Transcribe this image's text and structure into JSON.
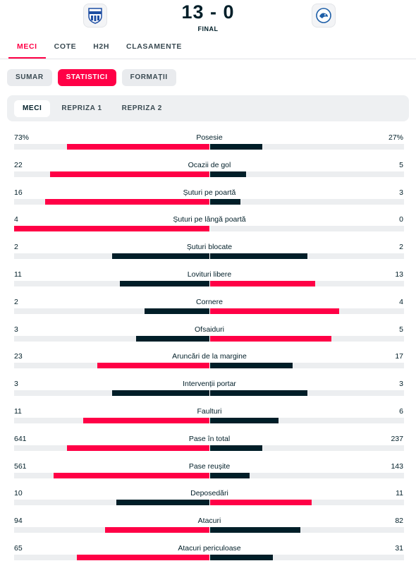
{
  "match": {
    "score": "13 - 0",
    "status": "FINAL",
    "home_icon": "team-crest-icon",
    "away_icon": "team-crest-icon"
  },
  "tabs": [
    "MECI",
    "COTE",
    "H2H",
    "CLASAMENTE"
  ],
  "active_tab": 0,
  "subtabs": [
    "SUMAR",
    "STATISTICI",
    "FORMAȚII"
  ],
  "active_subtab": 1,
  "periods": [
    "MECI",
    "REPRIZA 1",
    "REPRIZA 2"
  ],
  "active_period": 0,
  "colors": {
    "accent": "#ff0046",
    "dark": "#001e28",
    "track": "#eceef0"
  },
  "stats": [
    {
      "label": "Posesie",
      "home": "73%",
      "away": "27%",
      "home_value": 73,
      "away_value": 27
    },
    {
      "label": "Ocazii de gol",
      "home": "22",
      "away": "5",
      "home_value": 22,
      "away_value": 5
    },
    {
      "label": "Șuturi pe poartă",
      "home": "16",
      "away": "3",
      "home_value": 16,
      "away_value": 3
    },
    {
      "label": "Șuturi pe lângă poartă",
      "home": "4",
      "away": "0",
      "home_value": 4,
      "away_value": 0
    },
    {
      "label": "Șuturi blocate",
      "home": "2",
      "away": "2",
      "home_value": 2,
      "away_value": 2
    },
    {
      "label": "Lovituri libere",
      "home": "11",
      "away": "13",
      "home_value": 11,
      "away_value": 13
    },
    {
      "label": "Cornere",
      "home": "2",
      "away": "4",
      "home_value": 2,
      "away_value": 4
    },
    {
      "label": "Ofsaiduri",
      "home": "3",
      "away": "5",
      "home_value": 3,
      "away_value": 5
    },
    {
      "label": "Aruncări de la margine",
      "home": "23",
      "away": "17",
      "home_value": 23,
      "away_value": 17
    },
    {
      "label": "Intervenții portar",
      "home": "3",
      "away": "3",
      "home_value": 3,
      "away_value": 3
    },
    {
      "label": "Faulturi",
      "home": "11",
      "away": "6",
      "home_value": 11,
      "away_value": 6
    },
    {
      "label": "Pase în total",
      "home": "641",
      "away": "237",
      "home_value": 641,
      "away_value": 237
    },
    {
      "label": "Pase reușite",
      "home": "561",
      "away": "143",
      "home_value": 561,
      "away_value": 143
    },
    {
      "label": "Deposedări",
      "home": "10",
      "away": "11",
      "home_value": 10,
      "away_value": 11
    },
    {
      "label": "Atacuri",
      "home": "94",
      "away": "82",
      "home_value": 94,
      "away_value": 82
    },
    {
      "label": "Atacuri periculoase",
      "home": "65",
      "away": "31",
      "home_value": 65,
      "away_value": 31
    }
  ]
}
